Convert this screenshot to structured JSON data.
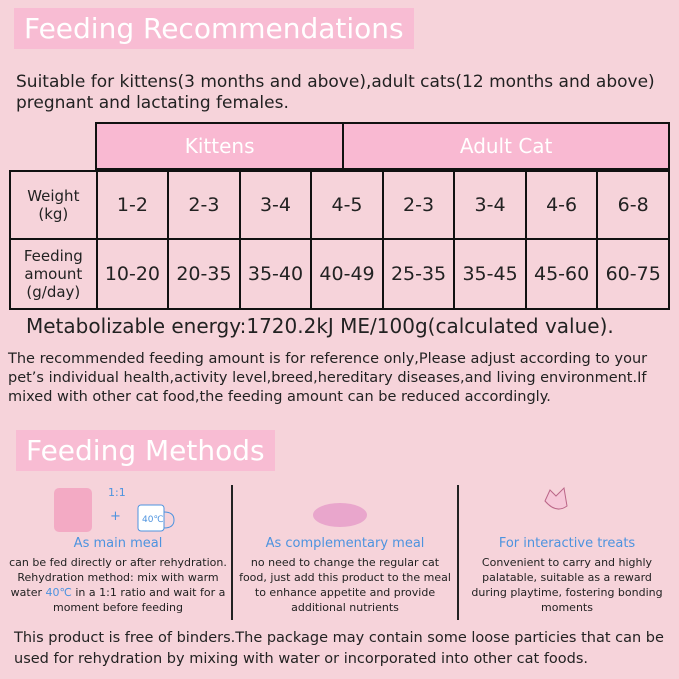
{
  "header": {
    "title": "Feeding Recommendations"
  },
  "intro": [
    "Suitable for kittens(3 months and above),adult cats(12 months and above)",
    "pregnant and lactating females."
  ],
  "table": {
    "groups": [
      "Kittens",
      "Adult Cat"
    ],
    "rows": [
      [
        "Weight (kg)",
        "1-2",
        "2-3",
        "3-4",
        "4-5",
        "2-3",
        "3-4",
        "4-6",
        "6-8"
      ],
      [
        "Feeding amount (g/day)",
        "10-20",
        "20-35",
        "35-40",
        "40-49",
        "25-35",
        "35-45",
        "45-60",
        "60-75"
      ]
    ]
  },
  "energy": "Metabolizable energy:1720.2kJ  ME/100g(calculated value).",
  "note": "The recommended feeding amount is for reference only,Please adjust according to your pet’s individual  health,activity  level,breed,hereditary diseases,and living environment.If mixed with other cat food,the feeding amount can be reduced accordingly.",
  "methods": {
    "title": "Feeding Methods",
    "ratio": "1:1",
    "plus": "+",
    "temp": "40℃",
    "items": [
      {
        "title": "As main meal",
        "text": [
          "can be fed directly  or after rehydration. Rehydration method: mix with warm water ",
          "40℃",
          " in a 1:1 ratio and wait for a moment before feeding"
        ]
      },
      {
        "title": "As complementary meal",
        "text": [
          "no need to change the regular cat food, just add this product to the meal to enhance appetite and provide additional nutrients"
        ]
      },
      {
        "title": "For interactive treats",
        "text": [
          "Convenient to carry and highly palatable, suitable as a reward during playtime, fostering bonding moments"
        ]
      }
    ]
  },
  "footer": "This product is free of binders.The package may contain some loose particies that can be  used  for rehydration  by mixing with water or incorporated  into other cat  foods."
}
